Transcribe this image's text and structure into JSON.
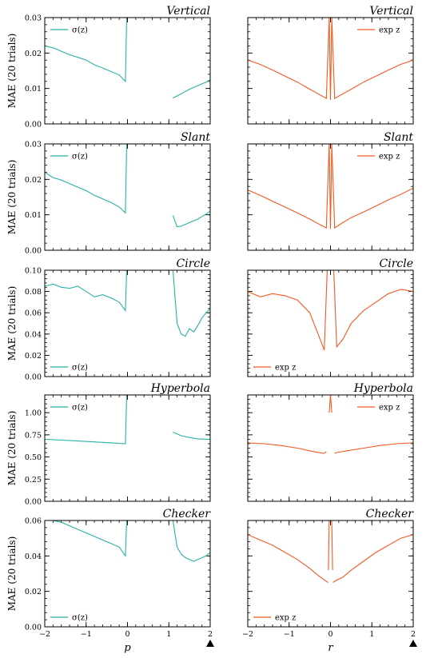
{
  "colors": {
    "sigma": "#2ab0a6",
    "exp": "#f05a1e"
  },
  "legend_labels": {
    "sigma": "σ(z)",
    "exp": "exp z"
  },
  "ylabel": "MAE (20 trials)",
  "xlabels": {
    "left": "p",
    "right": "r"
  },
  "marker_x": 2,
  "chart_data": [
    {
      "type": "line",
      "row": 0,
      "col": 0,
      "title": "Vertical",
      "ylabel": "MAE (20 trials)",
      "xlim": [
        -2,
        2
      ],
      "ylim": [
        0,
        0.03
      ],
      "yticks": [
        0,
        0.01,
        0.02,
        0.03
      ],
      "ytick_labels": [
        "0.00",
        "0.01",
        "0.02",
        "0.03"
      ],
      "legend": "top-left",
      "series": [
        {
          "name": "σ(z)",
          "segments": [
            {
              "x": [
                -2,
                -1.8,
                -1.6,
                -1.4,
                -1.2,
                -1.0,
                -0.8,
                -0.6,
                -0.4,
                -0.2,
                -0.05,
                -0.02
              ],
              "y": [
                0.022,
                0.0215,
                0.0205,
                0.0195,
                0.0188,
                0.018,
                0.0167,
                0.0158,
                0.0148,
                0.0138,
                0.012,
                0.03
              ]
            },
            {
              "x": [
                1.1,
                1.3,
                1.5,
                1.7,
                1.9,
                2.0
              ],
              "y": [
                0.0073,
                0.0085,
                0.0098,
                0.0108,
                0.0118,
                0.0125
              ]
            }
          ]
        }
      ]
    },
    {
      "type": "line",
      "row": 0,
      "col": 1,
      "title": "Vertical",
      "xlim": [
        -2,
        2
      ],
      "ylim": [
        0,
        0.03
      ],
      "yticks": [
        0,
        0.01,
        0.02,
        0.03
      ],
      "legend": "top-right",
      "series": [
        {
          "name": "exp z",
          "segments": [
            {
              "x": [
                -2,
                -1.7,
                -1.4,
                -1.1,
                -0.8,
                -0.5,
                -0.3,
                -0.1,
                -0.03,
                0,
                0.03,
                0.1,
                0.3,
                0.5,
                0.8,
                1.1,
                1.4,
                1.7,
                2.0
              ],
              "y": [
                0.018,
                0.0168,
                0.0152,
                0.0135,
                0.0118,
                0.0098,
                0.0085,
                0.0072,
                0.03,
                0.0068,
                0.03,
                0.0072,
                0.0085,
                0.0098,
                0.0118,
                0.0135,
                0.0152,
                0.0168,
                0.018
              ]
            }
          ]
        }
      ]
    },
    {
      "type": "line",
      "row": 1,
      "col": 0,
      "title": "Slant",
      "ylabel": "MAE (20 trials)",
      "xlim": [
        -2,
        2
      ],
      "ylim": [
        0,
        0.03
      ],
      "yticks": [
        0,
        0.01,
        0.02,
        0.03
      ],
      "ytick_labels": [
        "0.00",
        "0.01",
        "0.02",
        "0.03"
      ],
      "legend": "top-left",
      "series": [
        {
          "name": "σ(z)",
          "segments": [
            {
              "x": [
                -2,
                -1.8,
                -1.6,
                -1.4,
                -1.2,
                -1.0,
                -0.8,
                -0.6,
                -0.4,
                -0.2,
                -0.05,
                -0.02
              ],
              "y": [
                0.022,
                0.0205,
                0.0198,
                0.0188,
                0.0178,
                0.0168,
                0.0155,
                0.0145,
                0.0135,
                0.0122,
                0.0105,
                0.03
              ]
            },
            {
              "x": [
                1.1,
                1.2,
                1.3,
                1.5,
                1.7,
                1.9,
                2.0
              ],
              "y": [
                0.0098,
                0.0066,
                0.0068,
                0.0078,
                0.0088,
                0.0102,
                0.011
              ]
            }
          ]
        }
      ]
    },
    {
      "type": "line",
      "row": 1,
      "col": 1,
      "title": "Slant",
      "xlim": [
        -2,
        2
      ],
      "ylim": [
        0,
        0.03
      ],
      "yticks": [
        0,
        0.01,
        0.02,
        0.03
      ],
      "legend": "top-right",
      "series": [
        {
          "name": "exp z",
          "segments": [
            {
              "x": [
                -2,
                -1.7,
                -1.4,
                -1.1,
                -0.8,
                -0.5,
                -0.3,
                -0.1,
                -0.03,
                0,
                0.03,
                0.1,
                0.3,
                0.5,
                0.8,
                1.1,
                1.4,
                1.7,
                2.0
              ],
              "y": [
                0.017,
                0.0155,
                0.0138,
                0.0122,
                0.0105,
                0.0088,
                0.0075,
                0.0063,
                0.03,
                0.006,
                0.03,
                0.0063,
                0.0078,
                0.0092,
                0.0108,
                0.0125,
                0.0142,
                0.0158,
                0.0175
              ]
            }
          ]
        }
      ]
    },
    {
      "type": "line",
      "row": 2,
      "col": 0,
      "title": "Circle",
      "ylabel": "MAE (20 trials)",
      "xlim": [
        -2,
        2
      ],
      "ylim": [
        0,
        0.1
      ],
      "yticks": [
        0,
        0.02,
        0.04,
        0.06,
        0.08,
        0.1
      ],
      "ytick_labels": [
        "0.00",
        "0.02",
        "0.04",
        "0.06",
        "0.08",
        "0.10"
      ],
      "legend": "bottom-left",
      "series": [
        {
          "name": "σ(z)",
          "segments": [
            {
              "x": [
                -2,
                -1.8,
                -1.6,
                -1.4,
                -1.2,
                -1.0,
                -0.8,
                -0.6,
                -0.4,
                -0.2,
                -0.05,
                -0.02
              ],
              "y": [
                0.085,
                0.087,
                0.084,
                0.083,
                0.085,
                0.08,
                0.075,
                0.077,
                0.074,
                0.07,
                0.062,
                0.1
              ]
            },
            {
              "x": [
                1.1,
                1.2,
                1.3,
                1.4,
                1.5,
                1.6,
                1.7,
                1.8,
                1.9,
                2.0
              ],
              "y": [
                0.1,
                0.05,
                0.04,
                0.038,
                0.045,
                0.042,
                0.048,
                0.055,
                0.06,
                0.064
              ]
            }
          ]
        }
      ]
    },
    {
      "type": "line",
      "row": 2,
      "col": 1,
      "title": "Circle",
      "xlim": [
        -2,
        2
      ],
      "ylim": [
        0,
        0.1
      ],
      "yticks": [
        0,
        0.02,
        0.04,
        0.06,
        0.08,
        0.1
      ],
      "legend": "bottom-left",
      "series": [
        {
          "name": "exp z",
          "segments": [
            {
              "x": [
                -2,
                -1.7,
                -1.4,
                -1.1,
                -0.8,
                -0.5,
                -0.3,
                -0.15,
                -0.08,
                -0.04,
                0,
                0.04,
                0.08,
                0.15,
                0.3,
                0.5,
                0.8,
                1.1,
                1.4,
                1.7,
                2.0
              ],
              "y": [
                0.08,
                0.075,
                0.078,
                0.076,
                0.072,
                0.06,
                0.04,
                0.025,
                0.1,
                0.1,
                0.1,
                0.1,
                0.1,
                0.028,
                0.035,
                0.05,
                0.062,
                0.07,
                0.078,
                0.082,
                0.08
              ]
            }
          ]
        }
      ]
    },
    {
      "type": "line",
      "row": 3,
      "col": 0,
      "title": "Hyperbola",
      "ylabel": "MAE (20 trials)",
      "xlim": [
        -2,
        2
      ],
      "ylim": [
        0,
        1.2
      ],
      "yticks": [
        0,
        0.25,
        0.5,
        0.75,
        1.0
      ],
      "ytick_labels": [
        "0.00",
        "0.25",
        "0.50",
        "0.75",
        "1.00"
      ],
      "legend": "top-left",
      "series": [
        {
          "name": "σ(z)",
          "segments": [
            {
              "x": [
                -2,
                -1.6,
                -1.2,
                -0.8,
                -0.4,
                -0.05,
                -0.02
              ],
              "y": [
                0.7,
                0.69,
                0.68,
                0.67,
                0.66,
                0.65,
                1.2
              ]
            },
            {
              "x": [
                1.1,
                1.3,
                1.5,
                1.7,
                1.9,
                2.0
              ],
              "y": [
                0.78,
                0.74,
                0.72,
                0.705,
                0.7,
                0.7
              ]
            }
          ]
        }
      ]
    },
    {
      "type": "line",
      "row": 3,
      "col": 1,
      "title": "Hyperbola",
      "xlim": [
        -2,
        2
      ],
      "ylim": [
        0,
        1.2
      ],
      "yticks": [
        0,
        0.25,
        0.5,
        0.75,
        1.0
      ],
      "legend": "top-right",
      "series": [
        {
          "name": "exp z",
          "segments": [
            {
              "x": [
                -2,
                -1.6,
                -1.2,
                -0.8,
                -0.4,
                -0.15,
                -0.1
              ],
              "y": [
                0.66,
                0.65,
                0.63,
                0.6,
                0.56,
                0.54,
                0.56
              ]
            },
            {
              "x": [
                -0.03,
                0,
                0.03
              ],
              "y": [
                1.0,
                1.2,
                1.0
              ]
            },
            {
              "x": [
                0.1,
                0.15,
                0.4,
                0.8,
                1.2,
                1.6,
                2.0
              ],
              "y": [
                0.54,
                0.55,
                0.57,
                0.6,
                0.63,
                0.65,
                0.66
              ]
            }
          ]
        }
      ]
    },
    {
      "type": "line",
      "row": 4,
      "col": 0,
      "title": "Checker",
      "ylabel": "MAE (20 trials)",
      "xlabel": "p",
      "xlim": [
        -2,
        2
      ],
      "ylim": [
        0,
        0.06
      ],
      "yticks": [
        0,
        0.02,
        0.04,
        0.06
      ],
      "ytick_labels": [
        "0.00",
        "0.02",
        "0.04",
        "0.06"
      ],
      "xticks": [
        -2,
        -1,
        0,
        1,
        2
      ],
      "xtick_labels": [
        "−2",
        "−1",
        "0",
        "1",
        "2"
      ],
      "legend": "bottom-left",
      "series": [
        {
          "name": "σ(z)",
          "segments": [
            {
              "x": [
                -2,
                -1.8,
                -1.6,
                -1.4,
                -1.2,
                -1.0,
                -0.8,
                -0.6,
                -0.4,
                -0.2,
                -0.05,
                -0.02
              ],
              "y": [
                0.06,
                0.06,
                0.059,
                0.057,
                0.055,
                0.053,
                0.051,
                0.049,
                0.047,
                0.045,
                0.04,
                0.06
              ]
            },
            {
              "x": [
                1.1,
                1.2,
                1.3,
                1.4,
                1.5,
                1.6,
                1.7,
                1.8,
                1.9,
                2.0
              ],
              "y": [
                0.06,
                0.045,
                0.041,
                0.039,
                0.038,
                0.037,
                0.038,
                0.039,
                0.04,
                0.042
              ]
            }
          ]
        }
      ]
    },
    {
      "type": "line",
      "row": 4,
      "col": 1,
      "title": "Checker",
      "xlabel": "r",
      "xlim": [
        -2,
        2
      ],
      "ylim": [
        0,
        0.06
      ],
      "yticks": [
        0,
        0.02,
        0.04,
        0.06
      ],
      "xticks": [
        -2,
        -1,
        0,
        1,
        2
      ],
      "xtick_labels": [
        "−2",
        "−1",
        "0",
        "1",
        "2"
      ],
      "legend": "bottom-left",
      "series": [
        {
          "name": "exp z",
          "segments": [
            {
              "x": [
                -2,
                -1.7,
                -1.4,
                -1.1,
                -0.8,
                -0.5,
                -0.3,
                -0.12,
                -0.06
              ],
              "y": [
                0.052,
                0.049,
                0.046,
                0.042,
                0.038,
                0.033,
                0.029,
                0.026,
                0.025
              ]
            },
            {
              "x": [
                -0.05,
                -0.03,
                0,
                0.03,
                0.05
              ],
              "y": [
                0.032,
                0.06,
                0.06,
                0.06,
                0.032
              ]
            },
            {
              "x": [
                0.06,
                0.12,
                0.3,
                0.5,
                0.8,
                1.1,
                1.4,
                1.7,
                2.0
              ],
              "y": [
                0.025,
                0.026,
                0.028,
                0.032,
                0.037,
                0.042,
                0.046,
                0.05,
                0.052
              ]
            }
          ]
        }
      ]
    }
  ]
}
